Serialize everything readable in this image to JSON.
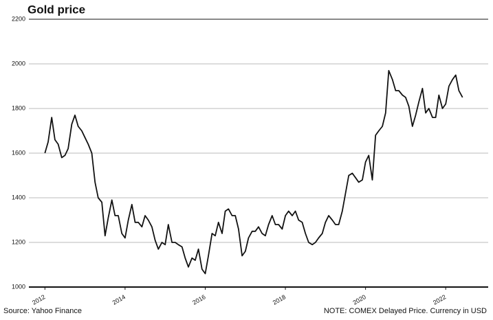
{
  "chart_data": {
    "type": "line",
    "title": "Gold price",
    "source": "Source: Yahoo Finance",
    "note": "NOTE: COMEX Delayed Price. Currency in USD",
    "x": [
      2012.0,
      2012.08,
      2012.17,
      2012.25,
      2012.33,
      2012.42,
      2012.5,
      2012.58,
      2012.67,
      2012.75,
      2012.83,
      2012.92,
      2013.0,
      2013.08,
      2013.17,
      2013.25,
      2013.33,
      2013.42,
      2013.5,
      2013.58,
      2013.67,
      2013.75,
      2013.83,
      2013.92,
      2014.0,
      2014.08,
      2014.17,
      2014.25,
      2014.33,
      2014.42,
      2014.5,
      2014.58,
      2014.67,
      2014.75,
      2014.83,
      2014.92,
      2015.0,
      2015.08,
      2015.17,
      2015.25,
      2015.33,
      2015.42,
      2015.5,
      2015.58,
      2015.67,
      2015.75,
      2015.83,
      2015.92,
      2016.0,
      2016.08,
      2016.17,
      2016.25,
      2016.33,
      2016.42,
      2016.5,
      2016.58,
      2016.67,
      2016.75,
      2016.83,
      2016.92,
      2017.0,
      2017.08,
      2017.17,
      2017.25,
      2017.33,
      2017.42,
      2017.5,
      2017.58,
      2017.67,
      2017.75,
      2017.83,
      2017.92,
      2018.0,
      2018.08,
      2018.17,
      2018.25,
      2018.33,
      2018.42,
      2018.5,
      2018.58,
      2018.67,
      2018.75,
      2018.83,
      2018.92,
      2019.0,
      2019.08,
      2019.17,
      2019.25,
      2019.33,
      2019.42,
      2019.5,
      2019.58,
      2019.67,
      2019.75,
      2019.83,
      2019.92,
      2020.0,
      2020.08,
      2020.17,
      2020.25,
      2020.33,
      2020.42,
      2020.5,
      2020.58,
      2020.67,
      2020.75,
      2020.83,
      2020.92,
      2021.0,
      2021.08,
      2021.17,
      2021.25,
      2021.33,
      2021.42,
      2021.5,
      2021.58,
      2021.67,
      2021.75,
      2021.83,
      2021.92,
      2022.0,
      2022.08,
      2022.17,
      2022.25,
      2022.33,
      2022.42
    ],
    "series": [
      {
        "name": "Gold",
        "color": "#111111",
        "values": [
          1600,
          1650,
          1760,
          1660,
          1640,
          1580,
          1590,
          1620,
          1730,
          1770,
          1720,
          1700,
          1670,
          1640,
          1600,
          1470,
          1400,
          1380,
          1230,
          1310,
          1390,
          1320,
          1320,
          1240,
          1220,
          1300,
          1370,
          1290,
          1290,
          1270,
          1320,
          1300,
          1270,
          1210,
          1170,
          1200,
          1190,
          1280,
          1200,
          1200,
          1190,
          1180,
          1130,
          1090,
          1130,
          1120,
          1170,
          1080,
          1060,
          1140,
          1240,
          1230,
          1290,
          1240,
          1340,
          1350,
          1320,
          1320,
          1260,
          1140,
          1160,
          1220,
          1250,
          1250,
          1270,
          1240,
          1230,
          1280,
          1320,
          1280,
          1280,
          1260,
          1320,
          1340,
          1320,
          1340,
          1300,
          1290,
          1240,
          1200,
          1190,
          1200,
          1220,
          1240,
          1290,
          1320,
          1300,
          1280,
          1280,
          1340,
          1420,
          1500,
          1510,
          1490,
          1470,
          1480,
          1560,
          1590,
          1480,
          1680,
          1700,
          1720,
          1780,
          1970,
          1930,
          1880,
          1880,
          1860,
          1850,
          1810,
          1720,
          1770,
          1830,
          1890,
          1780,
          1800,
          1760,
          1760,
          1860,
          1800,
          1820,
          1900,
          1930,
          1950,
          1880,
          1850
        ]
      }
    ],
    "xlim": [
      2011.6,
      2023.06
    ],
    "xticks": [
      2012,
      2014,
      2016,
      2018,
      2020,
      2022
    ],
    "ylim": [
      1000,
      2200
    ],
    "yticks": [
      1000,
      1200,
      1400,
      1600,
      1800,
      2000,
      2200
    ],
    "grid": true
  }
}
